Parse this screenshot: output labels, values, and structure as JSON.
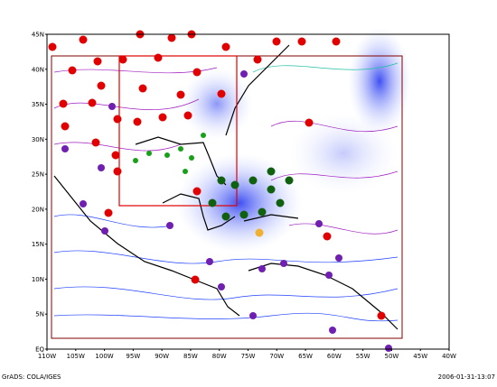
{
  "map": {
    "lat_labels": [
      "EQ",
      "5N",
      "10N",
      "15N",
      "20N",
      "25N",
      "30N",
      "35N",
      "40N",
      "45N"
    ],
    "lon_labels": [
      "110W",
      "105W",
      "100W",
      "95W",
      "90W",
      "85W",
      "80W",
      "75W",
      "70W",
      "65W",
      "60W",
      "55W",
      "50W",
      "45W",
      "40W"
    ]
  },
  "footer": {
    "left": "GrADS: COLA/IGES",
    "right": "2006-01-31-13:07"
  }
}
